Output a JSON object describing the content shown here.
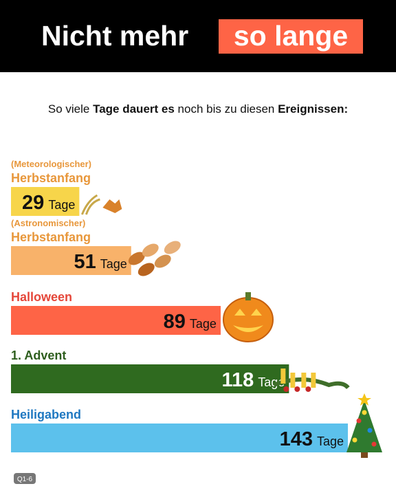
{
  "header": {
    "title": "Nicht mehr",
    "title_highlight": "so lange"
  },
  "chart_data": {
    "type": "bar",
    "subtitle": [
      {
        "text": "So viele ",
        "bold": false
      },
      {
        "text": "Tage dauert es",
        "bold": true
      },
      {
        "text": " noch bis zu diesen ",
        "bold": false
      },
      {
        "text": "Ereignissen:",
        "bold": true
      }
    ],
    "categories": [
      "Herbstanfang",
      "Herbstanfang",
      "Halloween",
      "1. Advent",
      "Heiligabend"
    ],
    "category_notes": [
      "(Meteorologischer)",
      "(Astronomischer)",
      null,
      null,
      null
    ],
    "values": [
      29,
      51,
      89,
      118,
      143
    ],
    "unit": "Tage",
    "colors": [
      "#f7d54a",
      "#f8b26a",
      "#fe6446",
      "#2f6a1f",
      "#5cc1ec"
    ],
    "label_colors": [
      "#e8973b",
      "#e8973b",
      "#e5473a",
      "#2e5e1e",
      "#1f78c1"
    ],
    "value_text_colors": [
      "#111111",
      "#111111",
      "#111111",
      "#ffffff",
      "#111111"
    ]
  },
  "footer": {
    "source": "Q1-6"
  }
}
